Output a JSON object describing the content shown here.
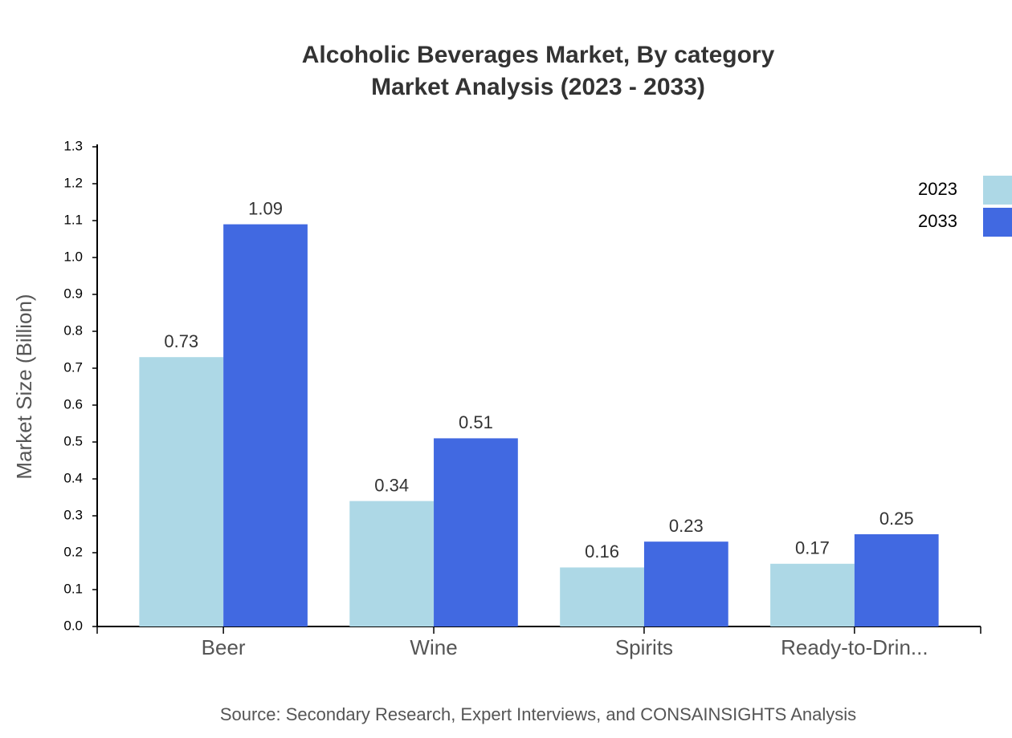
{
  "chart_data": {
    "type": "bar",
    "title": "Alcoholic Beverages Market, By category",
    "subtitle": "Market Analysis (2023 - 2033)",
    "y_label": "Market Size (Billion)",
    "source": "Source: Secondary Research, Expert Interviews, and CONSAINSIGHTS Analysis",
    "categories": [
      "Beer",
      "Wine",
      "Spirits",
      "Ready-to-Drin..."
    ],
    "series": [
      {
        "name": "2023",
        "color": "#add8e6",
        "values": [
          0.73,
          0.34,
          0.16,
          0.17
        ]
      },
      {
        "name": "2033",
        "color": "#4169e1",
        "values": [
          1.09,
          0.51,
          0.23,
          0.25
        ]
      }
    ],
    "ylim": [
      0,
      1.3
    ],
    "yticks": [
      {
        "value": 0,
        "label": "0.0"
      },
      0.1,
      0.2,
      0.3,
      0.4,
      0.5,
      0.6,
      0.7,
      0.8,
      0.9,
      {
        "value": 1,
        "label": "1.0"
      },
      1.1,
      1.2,
      1.3
    ],
    "legend": "top-right"
  }
}
